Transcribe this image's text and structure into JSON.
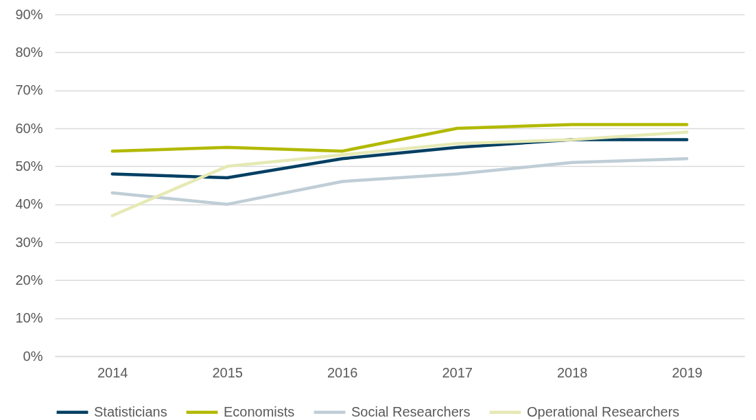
{
  "chart_data": {
    "type": "line",
    "categories": [
      "2014",
      "2015",
      "2016",
      "2017",
      "2018",
      "2019"
    ],
    "series": [
      {
        "name": "Statisticians",
        "color": "#003f62",
        "values": [
          48,
          47,
          52,
          55,
          57,
          57
        ]
      },
      {
        "name": "Economists",
        "color": "#b2b900",
        "values": [
          54,
          55,
          54,
          60,
          61,
          61
        ]
      },
      {
        "name": "Social Researchers",
        "color": "#bfcdd6",
        "values": [
          43,
          40,
          46,
          48,
          51,
          52
        ]
      },
      {
        "name": "Operational Researchers",
        "color": "#e6e9b4",
        "values": [
          37,
          50,
          53,
          56,
          57,
          59
        ]
      }
    ],
    "ylim": [
      0,
      90
    ],
    "yticks": [
      {
        "value": 0,
        "label": "0%"
      },
      {
        "value": 10,
        "label": "10%"
      },
      {
        "value": 20,
        "label": "20%"
      },
      {
        "value": 30,
        "label": "30%"
      },
      {
        "value": 40,
        "label": "40%"
      },
      {
        "value": 50,
        "label": "50%"
      },
      {
        "value": 60,
        "label": "60%"
      },
      {
        "value": 70,
        "label": "70%"
      },
      {
        "value": 80,
        "label": "80%"
      },
      {
        "value": 90,
        "label": "90%"
      }
    ],
    "grid": "y",
    "legend": "bottom"
  }
}
